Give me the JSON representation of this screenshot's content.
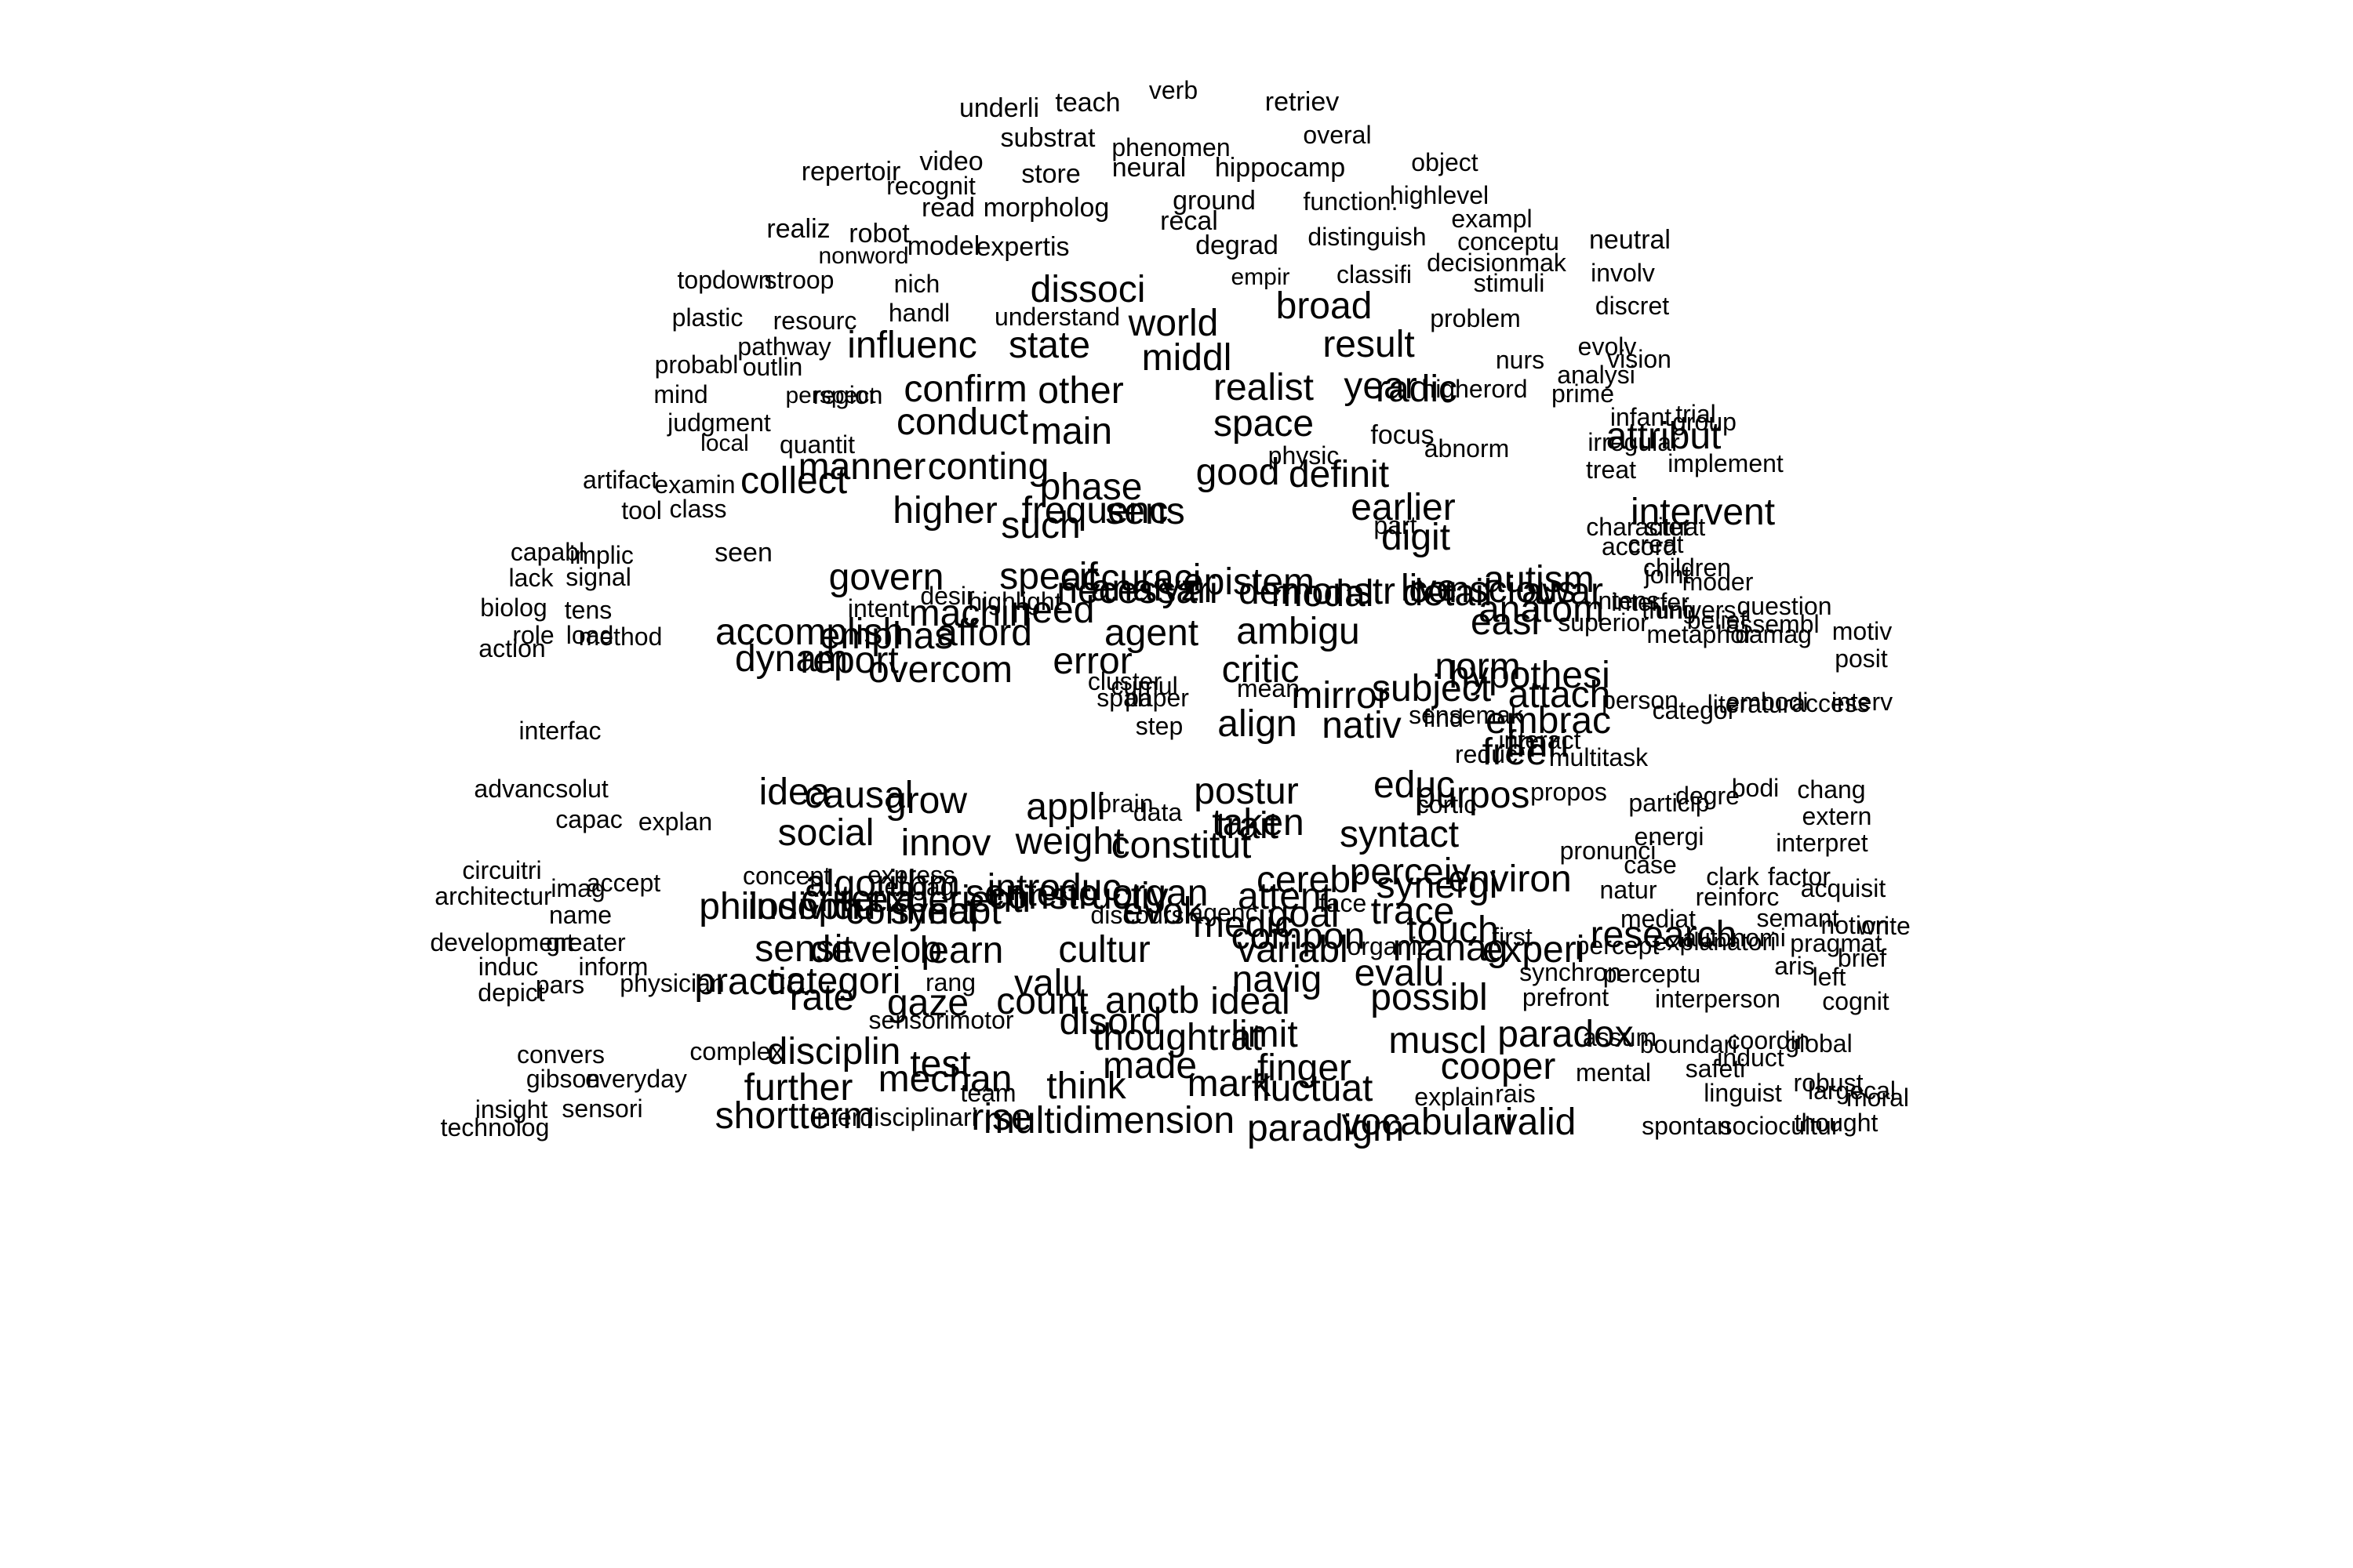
{
  "colors": {
    "background": "#ffffff",
    "text": "#000000"
  },
  "words": [
    "underli",
    "teach",
    "verb",
    "retriev",
    "substrat",
    "phenomen",
    "overal",
    "repertoir",
    "video",
    "store",
    "neural",
    "hippocamp",
    "object",
    "recognit",
    "read",
    "morpholog",
    "ground",
    "function.",
    "highlevel",
    "realiz",
    "robot",
    "recal",
    "distinguish",
    "exampl",
    "nonword",
    "model",
    "expertis",
    "degrad",
    "conceptu",
    "neutral",
    "topdown",
    "stroop",
    "nich",
    "empir",
    "classifi",
    "decisionmak",
    "stimuli",
    "involv",
    "plastic",
    "resourc",
    "handl",
    "dissoci",
    "understand",
    "broad",
    "problem",
    "discret",
    "pathway",
    "influenc",
    "world",
    "state",
    "middl",
    "result",
    "nurs",
    "evolv",
    "probabl",
    "outlin",
    "perspect",
    "confirm",
    "other",
    "realist",
    "year",
    "higherord",
    "analysi",
    "vision",
    "mind",
    "judgment",
    "region",
    "conduct",
    "main",
    "space",
    "radic",
    "prime",
    "infant",
    "group",
    "local",
    "quantit",
    "physic",
    "focus",
    "abnorm",
    "irregular",
    "attribut",
    "trial",
    "artifact",
    "examin",
    "collect",
    "manner",
    "conting",
    "frequenc",
    "phase",
    "good",
    "definit",
    "treat",
    "implement",
    "tool",
    "class",
    "higher",
    "such",
    "sens",
    "earlier",
    "part",
    "digit",
    "character",
    "intervent",
    "accord",
    "capabl",
    "implic",
    "seen",
    "govern",
    "specif",
    "accuraci",
    "epistem",
    "live",
    "autism",
    "creat",
    "joint",
    "situat",
    "lack",
    "signal",
    "desir",
    "highlight",
    "analyz",
    "modal",
    "detail",
    "awar",
    "interfer",
    "children",
    "moder",
    "biolog",
    "tens",
    "intent",
    "machin",
    "need",
    "necessari",
    "demonstr",
    "conscious",
    "anatom",
    "intens",
    "univers",
    "question",
    "assembl",
    "role",
    "load",
    "accomplish",
    "emphas",
    "afford",
    "agent",
    "ambigu",
    "easi",
    "thing",
    "belief",
    "motiv",
    "action",
    "method",
    "dynam",
    "report",
    "overcom",
    "error",
    "critic",
    "norm",
    "hypothesi",
    "superior",
    "metaphor",
    "damag",
    "posit",
    "cluster",
    "cumul",
    "span",
    "paper",
    "mean",
    "mirror",
    "subject",
    "attach",
    "person",
    "categor",
    "embodi",
    "interv",
    "interfac",
    "step",
    "align",
    "nativ",
    "embrac",
    "find",
    "sensemak",
    "interact",
    "reduc",
    "literatur",
    "access",
    "brain",
    "postur",
    "educ",
    "free",
    "fmri",
    "multitask",
    "cortic",
    "purpos",
    "propos",
    "degre",
    "bodi",
    "advanc",
    "solut",
    "idea",
    "causal",
    "grow",
    "appli",
    "data",
    "trait",
    "particip",
    "chang",
    "extern",
    "capac",
    "explan",
    "social",
    "innov",
    "weight",
    "constitut",
    "taken",
    "syntact",
    "pronunci",
    "energi",
    "interpret",
    "circuitri",
    "concept",
    "algorithm",
    "engag",
    "sentenc",
    "organ",
    "cerebr",
    "perceiv",
    "environ",
    "case",
    "clark",
    "factor",
    "architectur",
    "imag",
    "accept",
    "express",
    "experienti",
    "introduc",
    "attent",
    "face",
    "synergi",
    "natur",
    "reinforc",
    "acquisit",
    "name",
    "philosoph",
    "criteria",
    "synapt",
    "constructiv",
    "evok",
    "agenc",
    "goal",
    "trace",
    "mediat",
    "semant",
    "write",
    "individu",
    "connect",
    "discours",
    "medic",
    "compon",
    "organiz",
    "touch",
    "first",
    "research",
    "autonomi",
    "pragmat",
    "notion",
    "development",
    "greater",
    "sensit",
    "develop",
    "learn",
    "cultur",
    "variabl",
    "manag",
    "experi",
    "percept",
    "explanatori",
    "brief",
    "induc",
    "inform",
    "practic",
    "categori",
    "rang",
    "valu",
    "navig",
    "evalu",
    "synchron",
    "perceptu",
    "aris",
    "left",
    "depict",
    "pars",
    "physician",
    "rate",
    "gaze",
    "count",
    "anotb",
    "ideal",
    "possibl",
    "prefront",
    "interperson",
    "cognit",
    "sensorimotor",
    "disord",
    "thoughtrat",
    "limit",
    "muscl",
    "paradox",
    "assum",
    "boundari",
    "coordin",
    "global",
    "induct",
    "convers",
    "complex",
    "disciplin",
    "test",
    "made",
    "finger",
    "cooper",
    "mental",
    "safeti",
    "robust",
    "largecal",
    "gibson",
    "everyday",
    "further",
    "mechan",
    "team",
    "think",
    "mark",
    "fluctuat",
    "explain",
    "rais",
    "linguist",
    "moral",
    "insight",
    "sensori",
    "shortterm",
    "interdisciplinari",
    "rise",
    "multidimension",
    "paradigm",
    "vocabulari",
    "valid",
    "spontan",
    "sociocultur",
    "thought",
    "technolog"
  ]
}
